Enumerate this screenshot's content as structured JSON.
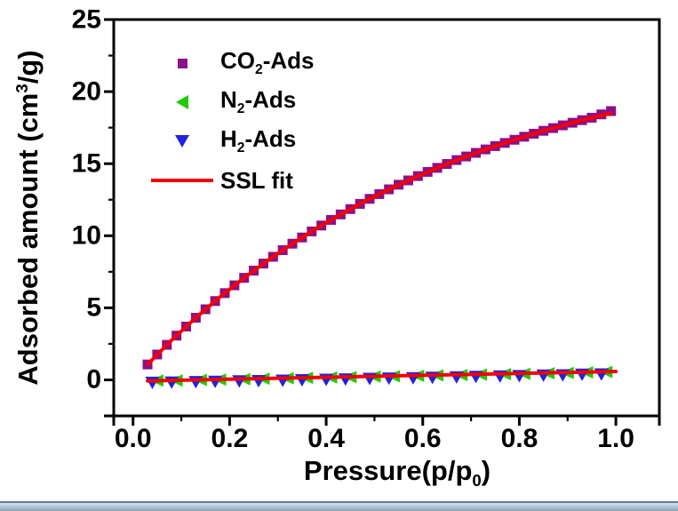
{
  "window_chrome": {
    "strip_line": "#5a7d99",
    "strip_light": "#d3e2ee",
    "strip_dark": "#8fa4b1"
  },
  "chart_data": {
    "type": "scatter",
    "title": "",
    "xlabel": {
      "pre": "Pressure(p/p",
      "sub": "0",
      "post": ")"
    },
    "ylabel": {
      "pre": "Adsorbed amount (cm",
      "sup": "3",
      "post": "/g)"
    },
    "xlim": [
      -0.04,
      1.09
    ],
    "ylim": [
      -2.5,
      25
    ],
    "grid": false,
    "legend_position": "upper-left-inside",
    "x_ticks": [
      0.0,
      0.2,
      0.4,
      0.6,
      0.8,
      1.0
    ],
    "x_tick_labels": [
      "0.0",
      "0.2",
      "0.4",
      "0.6",
      "0.8",
      "1.0"
    ],
    "x_minor_ticks": [
      0.1,
      0.3,
      0.5,
      0.7,
      0.9
    ],
    "x_axis_end_ticks": [
      -0.04,
      1.09
    ],
    "y_ticks": [
      0,
      5,
      10,
      15,
      20,
      25
    ],
    "y_tick_labels": [
      "0",
      "5",
      "10",
      "15",
      "20",
      "25"
    ],
    "y_minor_ticks": [
      2.5,
      7.5,
      12.5,
      17.5,
      22.5
    ],
    "y_axis_end_ticks": [
      -2.5
    ],
    "axis_color": "#000000",
    "series": [
      {
        "legend": {
          "main": "CO",
          "sub": "2",
          "post": "-Ads"
        },
        "marker": "square",
        "color": "#8c0f8c",
        "x": [
          0.03,
          0.05,
          0.07,
          0.09,
          0.11,
          0.13,
          0.15,
          0.17,
          0.19,
          0.21,
          0.23,
          0.25,
          0.27,
          0.29,
          0.31,
          0.33,
          0.35,
          0.37,
          0.39,
          0.41,
          0.43,
          0.45,
          0.47,
          0.49,
          0.51,
          0.53,
          0.55,
          0.57,
          0.59,
          0.61,
          0.63,
          0.65,
          0.67,
          0.69,
          0.71,
          0.73,
          0.75,
          0.77,
          0.79,
          0.81,
          0.83,
          0.85,
          0.87,
          0.89,
          0.91,
          0.93,
          0.95,
          0.97,
          0.99
        ],
        "y": [
          1.07,
          1.76,
          2.43,
          3.07,
          3.7,
          4.31,
          4.9,
          5.47,
          6.02,
          6.56,
          7.08,
          7.58,
          8.07,
          8.54,
          9.0,
          9.45,
          9.88,
          10.3,
          10.71,
          11.1,
          11.48,
          11.85,
          12.21,
          12.56,
          12.89,
          13.22,
          13.54,
          13.84,
          14.14,
          14.43,
          14.71,
          14.98,
          15.25,
          15.5,
          15.75,
          15.99,
          16.22,
          16.44,
          16.66,
          16.87,
          17.08,
          17.28,
          17.47,
          17.66,
          17.84,
          18.02,
          18.19,
          18.42,
          18.65
        ]
      },
      {
        "legend": {
          "main": "N",
          "sub": "2",
          "post": "-Ads"
        },
        "marker": "triangle-left",
        "color": "#1fcc00",
        "x": [
          0.05,
          0.09,
          0.14,
          0.18,
          0.23,
          0.27,
          0.32,
          0.36,
          0.41,
          0.45,
          0.5,
          0.54,
          0.59,
          0.63,
          0.68,
          0.72,
          0.77,
          0.81,
          0.86,
          0.9,
          0.94,
          0.98
        ],
        "y": [
          -0.05,
          -0.04,
          0.0,
          0.02,
          0.05,
          0.08,
          0.11,
          0.14,
          0.17,
          0.19,
          0.23,
          0.25,
          0.28,
          0.31,
          0.34,
          0.37,
          0.4,
          0.42,
          0.46,
          0.48,
          0.52,
          0.55
        ]
      },
      {
        "legend": {
          "main": "H",
          "sub": "2",
          "post": "-Ads"
        },
        "marker": "triangle-down",
        "color": "#2222dd",
        "x": [
          0.04,
          0.08,
          0.13,
          0.17,
          0.22,
          0.26,
          0.31,
          0.35,
          0.4,
          0.44,
          0.49,
          0.53,
          0.58,
          0.62,
          0.67,
          0.71,
          0.76,
          0.8,
          0.85,
          0.89,
          0.93,
          0.97
        ],
        "y": [
          -0.15,
          -0.13,
          -0.1,
          -0.08,
          -0.05,
          -0.03,
          0.0,
          0.03,
          0.06,
          0.08,
          0.12,
          0.14,
          0.17,
          0.2,
          0.23,
          0.26,
          0.29,
          0.31,
          0.35,
          0.37,
          0.41,
          0.43
        ]
      },
      {
        "legend": {
          "main": "SSL fit"
        },
        "marker": "line",
        "color": "#f40000",
        "fit_curves": [
          {
            "x": [
              0.03,
              0.08,
              0.13,
              0.18,
              0.23,
              0.28,
              0.33,
              0.38,
              0.43,
              0.48,
              0.53,
              0.58,
              0.63,
              0.68,
              0.73,
              0.78,
              0.83,
              0.88,
              0.93,
              0.99
            ],
            "y": [
              1.07,
              2.76,
              4.31,
              5.75,
              7.08,
              8.31,
              9.45,
              10.51,
              11.48,
              12.39,
              13.22,
              13.99,
              14.71,
              15.37,
              15.99,
              16.55,
              17.08,
              17.56,
              18.02,
              18.51
            ]
          },
          {
            "x": [
              0.03,
              0.5,
              1.0
            ],
            "y": [
              -0.07,
              0.25,
              0.58
            ]
          }
        ]
      }
    ]
  }
}
